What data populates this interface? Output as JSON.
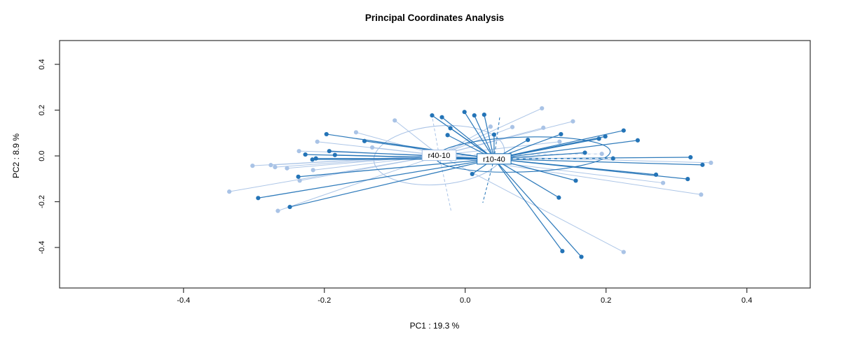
{
  "page": {
    "background": "#ffffff"
  },
  "chart_data": {
    "type": "scatter",
    "title": "Principal Coordinates Analysis",
    "xlabel": "PC1 :  19.3 %",
    "ylabel": "PC2 :  8.9 %",
    "xlim": [
      -0.576,
      0.49
    ],
    "ylim": [
      -0.577,
      0.504
    ],
    "x_ticks": [
      -0.4,
      -0.2,
      0.0,
      0.2,
      0.4
    ],
    "y_ticks": [
      -0.4,
      -0.2,
      0.0,
      0.2,
      0.4
    ],
    "grid": false,
    "legend": "none",
    "frame_color": "#333333",
    "tick_text_color": "#1a1a1a",
    "plot_style": "spider-plot with centroid labels and ellipses (ordination, R style)",
    "groups": [
      {
        "name": "r40-10",
        "color": "#a9c3e6",
        "centroid": [
          -0.037,
          0.003
        ],
        "ellipse": {
          "cx": -0.037,
          "cy": 0.003,
          "rx": 0.093,
          "ry": 0.128,
          "rot": -5
        },
        "dashed_rays": [
          [
            -0.047,
            0.174
          ],
          [
            -0.02,
            -0.241
          ]
        ],
        "white_dash_ray": [
          0.194,
          0.009
        ],
        "points": [
          [
            -0.335,
            -0.156
          ],
          [
            -0.302,
            -0.043
          ],
          [
            -0.276,
            -0.04
          ],
          [
            -0.27,
            -0.049
          ],
          [
            -0.266,
            -0.24
          ],
          [
            -0.253,
            -0.054
          ],
          [
            -0.236,
            0.021
          ],
          [
            -0.235,
            -0.108
          ],
          [
            -0.216,
            -0.062
          ],
          [
            -0.21,
            0.062
          ],
          [
            -0.155,
            0.103
          ],
          [
            -0.132,
            0.037
          ],
          [
            -0.1,
            0.155
          ],
          [
            0.036,
            0.128
          ],
          [
            0.067,
            0.126
          ],
          [
            0.109,
            0.208
          ],
          [
            0.111,
            0.123
          ],
          [
            0.134,
            0.062
          ],
          [
            0.153,
            0.151
          ],
          [
            0.194,
            0.009
          ],
          [
            0.225,
            -0.42
          ],
          [
            0.281,
            -0.118
          ],
          [
            0.335,
            -0.169
          ],
          [
            0.349,
            -0.03
          ]
        ]
      },
      {
        "name": "r10-40",
        "color": "#2474b7",
        "centroid": [
          0.041,
          -0.013
        ],
        "ellipse": {
          "cx": 0.082,
          "cy": 0.006,
          "rx": 0.124,
          "ry": 0.076,
          "rot": -2
        },
        "dashed_rays": [
          [
            0.025,
            -0.205
          ],
          [
            0.049,
            0.168
          ]
        ],
        "white_dash_ray": [
          0.21,
          -0.011
        ],
        "points": [
          [
            -0.294,
            -0.184
          ],
          [
            -0.249,
            -0.223
          ],
          [
            -0.237,
            -0.091
          ],
          [
            -0.227,
            0.006
          ],
          [
            -0.217,
            -0.016
          ],
          [
            -0.212,
            -0.011
          ],
          [
            -0.197,
            0.095
          ],
          [
            -0.193,
            0.021
          ],
          [
            -0.185,
            0.004
          ],
          [
            -0.143,
            0.065
          ],
          [
            -0.047,
            0.177
          ],
          [
            -0.033,
            0.169
          ],
          [
            -0.025,
            0.091
          ],
          [
            -0.021,
            0.121
          ],
          [
            -0.001,
            0.192
          ],
          [
            0.01,
            -0.079
          ],
          [
            0.013,
            0.177
          ],
          [
            0.027,
            0.18
          ],
          [
            0.041,
            0.093
          ],
          [
            0.089,
            0.07
          ],
          [
            0.133,
            -0.182
          ],
          [
            0.136,
            0.095
          ],
          [
            0.138,
            -0.416
          ],
          [
            0.157,
            -0.108
          ],
          [
            0.165,
            -0.441
          ],
          [
            0.17,
            0.014
          ],
          [
            0.19,
            0.075
          ],
          [
            0.199,
            0.085
          ],
          [
            0.21,
            -0.011
          ],
          [
            0.225,
            0.111
          ],
          [
            0.245,
            0.068
          ],
          [
            0.271,
            -0.082
          ],
          [
            0.316,
            -0.101
          ],
          [
            0.32,
            -0.006
          ],
          [
            0.337,
            -0.039
          ]
        ]
      }
    ]
  }
}
